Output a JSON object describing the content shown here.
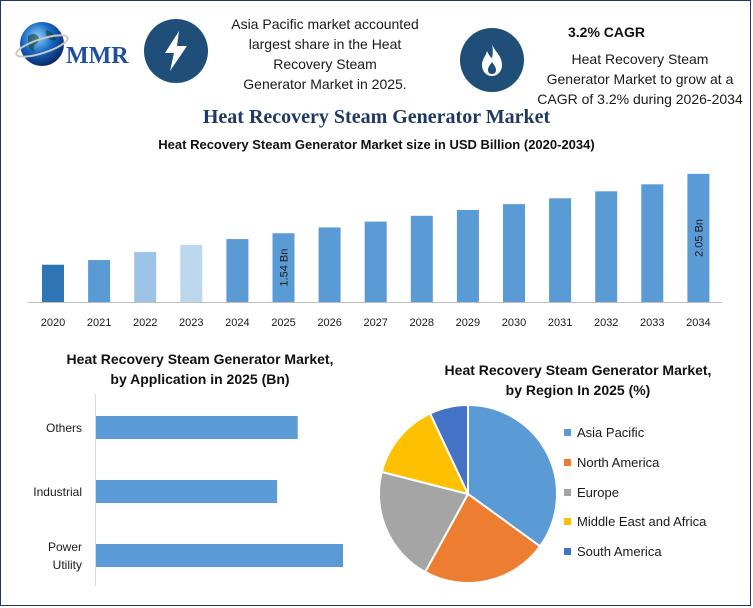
{
  "header": {
    "logo_text": "MMR",
    "left_info": "Asia Pacific market accounted largest share in the Heat Recovery Steam Generator Market in 2025.",
    "left_info_lines": [
      "Asia Pacific market accounted",
      "largest share in the Heat",
      "Recovery Steam",
      "Generator Market in 2025."
    ],
    "cagr_title": "3.2% CAGR",
    "right_info_lines": [
      "Heat Recovery Steam",
      "Generator Market to grow at a",
      "CAGR of 3.2% during 2026-2034"
    ],
    "icons": [
      "lightning-icon",
      "flame-icon"
    ],
    "icon_bg_color": "#1f4e79"
  },
  "main_title": "Heat Recovery Steam Generator Market",
  "chart_data": [
    {
      "type": "bar",
      "title": "Heat Recovery Steam Generator Market size in USD Billion (2020-2034)",
      "categories": [
        "2020",
        "2021",
        "2022",
        "2023",
        "2024",
        "2025",
        "2026",
        "2027",
        "2028",
        "2029",
        "2030",
        "2031",
        "2032",
        "2033",
        "2034"
      ],
      "values": [
        1.27,
        1.31,
        1.38,
        1.44,
        1.49,
        1.54,
        1.59,
        1.64,
        1.69,
        1.74,
        1.79,
        1.84,
        1.9,
        1.96,
        2.05
      ],
      "data_labels": {
        "2025": "1.54 Bn",
        "2034": "2.05 Bn"
      },
      "bar_colors": [
        "#2e75b6",
        "#5b9bd5",
        "#9dc3e6",
        "#bdd7ee",
        "#5b9bd5",
        "#5b9bd5",
        "#5b9bd5",
        "#5b9bd5",
        "#5b9bd5",
        "#5b9bd5",
        "#5b9bd5",
        "#5b9bd5",
        "#5b9bd5",
        "#5b9bd5",
        "#5b9bd5"
      ],
      "ylim": [
        0.95,
        2.1
      ],
      "grid": false
    },
    {
      "type": "bar",
      "orientation": "horizontal",
      "title": "Heat Recovery Steam Generator Market, by Application in 2025 (Bn)",
      "title_lines": [
        "Heat Recovery Steam Generator Market,",
        "by Application in 2025 (Bn)"
      ],
      "categories": [
        "Others",
        "Industrial",
        "Power Utility"
      ],
      "category_lines": [
        [
          "Others"
        ],
        [
          "Industrial"
        ],
        [
          "Power",
          "Utility"
        ]
      ],
      "values": [
        0.49,
        0.44,
        0.6
      ],
      "xlim": [
        0,
        0.7
      ],
      "color": "#5b9bd5"
    },
    {
      "type": "pie",
      "title": "Heat Recovery Steam Generator Market, by Region In 2025 (%)",
      "title_lines": [
        "Heat Recovery Steam Generator Market,",
        "by Region In 2025 (%)"
      ],
      "labels": [
        "Asia Pacific",
        "North America",
        "Europe",
        "Middle East and Africa",
        "South America"
      ],
      "values": [
        35,
        23,
        21,
        14,
        7
      ],
      "colors": [
        "#5b9bd5",
        "#ed7d31",
        "#a5a5a5",
        "#ffc000",
        "#4472c4"
      ],
      "legend_position": "right"
    }
  ]
}
